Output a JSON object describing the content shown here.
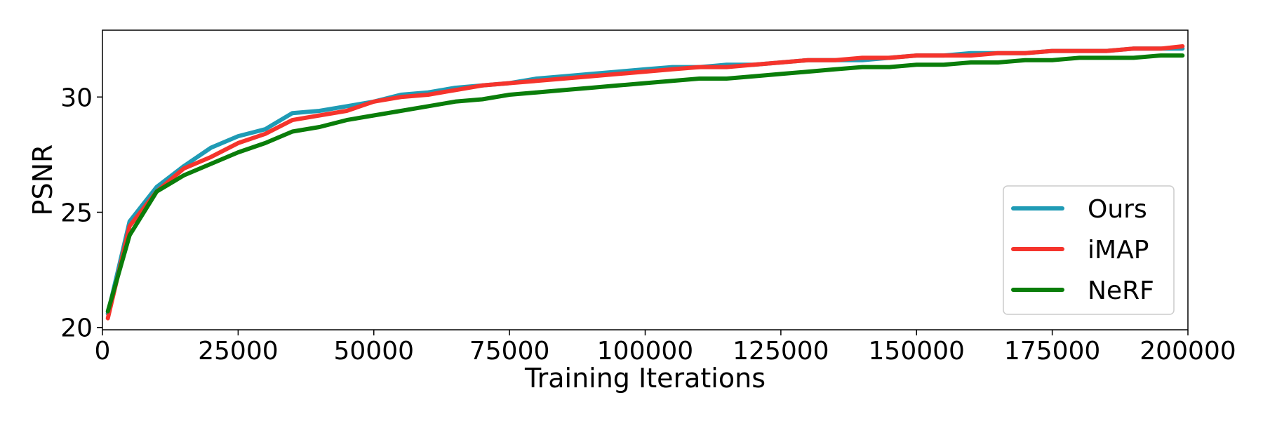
{
  "chart_data": {
    "type": "line",
    "title": "",
    "xlabel": "Training Iterations",
    "ylabel": "PSNR",
    "xlim": [
      0,
      200000
    ],
    "ylim": [
      19.9,
      32.9
    ],
    "xticks": [
      0,
      25000,
      50000,
      75000,
      100000,
      125000,
      150000,
      175000,
      200000
    ],
    "yticks": [
      20,
      25,
      30
    ],
    "grid": false,
    "legend": "lower-right",
    "x": [
      1000,
      5000,
      10000,
      15000,
      20000,
      25000,
      30000,
      35000,
      40000,
      45000,
      50000,
      55000,
      60000,
      65000,
      70000,
      75000,
      80000,
      85000,
      90000,
      95000,
      100000,
      105000,
      110000,
      115000,
      120000,
      125000,
      130000,
      135000,
      140000,
      145000,
      150000,
      155000,
      160000,
      165000,
      170000,
      175000,
      180000,
      185000,
      190000,
      195000,
      199000
    ],
    "series": [
      {
        "name": "Ours",
        "color": "#1f9bb5",
        "values": [
          20.6,
          24.6,
          26.1,
          27.0,
          27.8,
          28.3,
          28.6,
          29.3,
          29.4,
          29.6,
          29.8,
          30.1,
          30.2,
          30.4,
          30.5,
          30.6,
          30.8,
          30.9,
          31.0,
          31.1,
          31.2,
          31.3,
          31.3,
          31.4,
          31.4,
          31.5,
          31.6,
          31.6,
          31.6,
          31.7,
          31.8,
          31.8,
          31.9,
          31.9,
          31.9,
          32.0,
          32.0,
          32.0,
          32.1,
          32.1,
          32.1
        ]
      },
      {
        "name": "iMAP",
        "color": "#f5342c",
        "values": [
          20.4,
          24.4,
          25.9,
          26.9,
          27.4,
          28.0,
          28.4,
          29.0,
          29.2,
          29.4,
          29.8,
          30.0,
          30.1,
          30.3,
          30.5,
          30.6,
          30.7,
          30.8,
          30.9,
          31.0,
          31.1,
          31.2,
          31.3,
          31.3,
          31.4,
          31.5,
          31.6,
          31.6,
          31.7,
          31.7,
          31.8,
          31.8,
          31.8,
          31.9,
          31.9,
          32.0,
          32.0,
          32.0,
          32.1,
          32.1,
          32.2
        ]
      },
      {
        "name": "NeRF",
        "color": "#0a7d0a",
        "values": [
          20.7,
          24.0,
          25.9,
          26.6,
          27.1,
          27.6,
          28.0,
          28.5,
          28.7,
          29.0,
          29.2,
          29.4,
          29.6,
          29.8,
          29.9,
          30.1,
          30.2,
          30.3,
          30.4,
          30.5,
          30.6,
          30.7,
          30.8,
          30.8,
          30.9,
          31.0,
          31.1,
          31.2,
          31.3,
          31.3,
          31.4,
          31.4,
          31.5,
          31.5,
          31.6,
          31.6,
          31.7,
          31.7,
          31.7,
          31.8,
          31.8
        ]
      }
    ]
  }
}
